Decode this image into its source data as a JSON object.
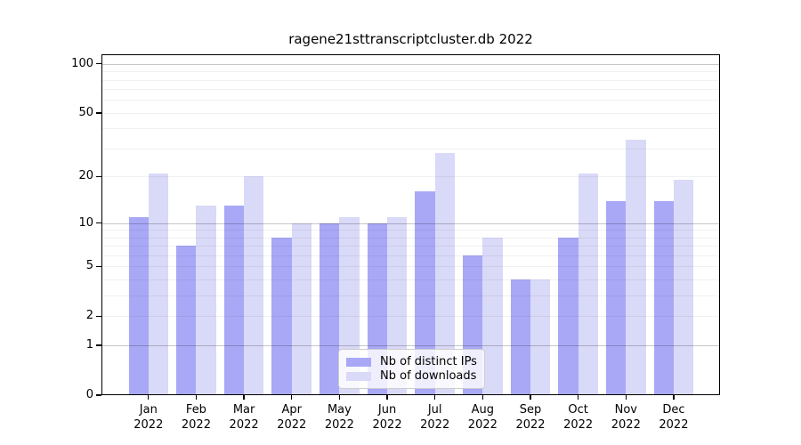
{
  "title": "ragene21sttranscriptcluster.db 2022",
  "chart_data": {
    "type": "bar",
    "title": "ragene21sttranscriptcluster.db 2022",
    "categories": [
      "Jan",
      "Feb",
      "Mar",
      "Apr",
      "May",
      "Jun",
      "Jul",
      "Aug",
      "Sep",
      "Oct",
      "Nov",
      "Dec"
    ],
    "year_label": "2022",
    "series": [
      {
        "name": "Nb of distinct IPs",
        "color": "#a8a8f6",
        "values": [
          11,
          7,
          13,
          8,
          10,
          10,
          16,
          6,
          4,
          8,
          14,
          14
        ]
      },
      {
        "name": "Nb of downloads",
        "color": "#d9d9f8",
        "values": [
          21,
          13,
          20,
          10,
          11,
          11,
          28,
          8,
          4,
          21,
          34,
          19
        ]
      }
    ],
    "xlabel": "",
    "ylabel": "",
    "y_scale": "log1p",
    "ylim": [
      0,
      114
    ],
    "y_ticks": [
      0,
      1,
      2,
      5,
      10,
      20,
      50,
      100
    ],
    "grid_major_values": [
      1,
      10,
      100
    ],
    "grid_minor_values": [
      2,
      3,
      4,
      5,
      6,
      7,
      8,
      9,
      20,
      30,
      40,
      50,
      60,
      70,
      80,
      90
    ],
    "grid": "on",
    "legend_position": "lower center",
    "legend_labels": [
      "Nb of distinct IPs",
      "Nb of downloads"
    ]
  }
}
